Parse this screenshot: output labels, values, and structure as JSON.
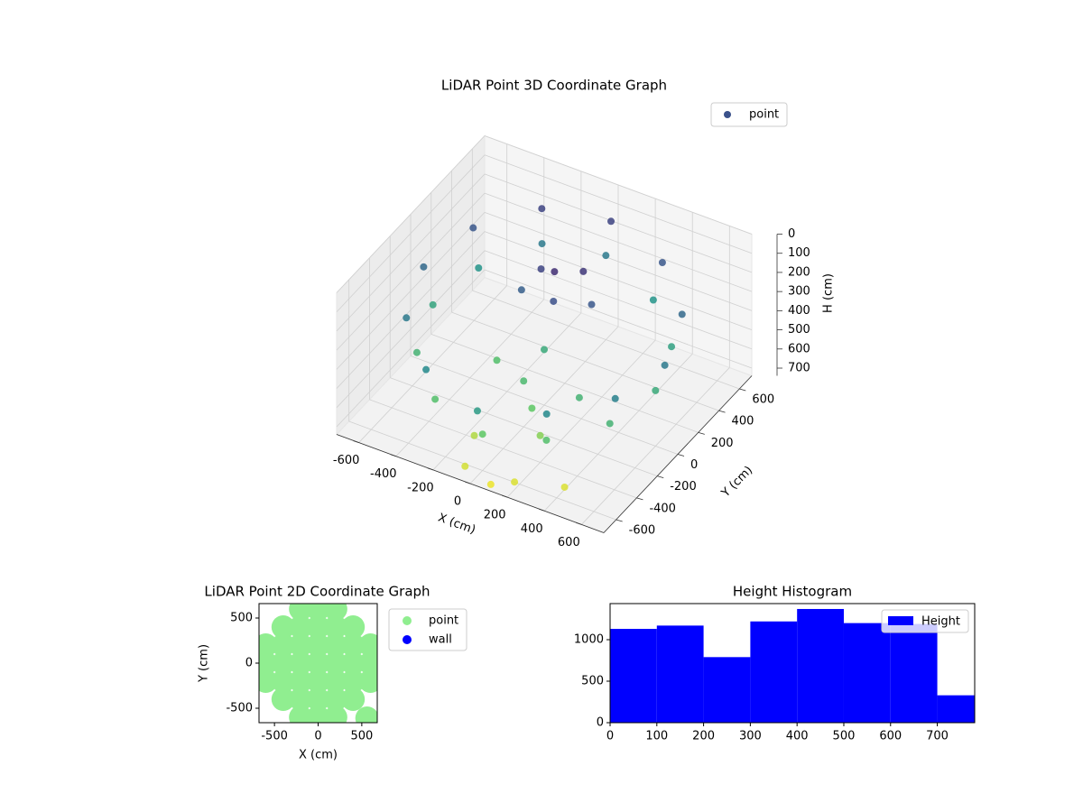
{
  "chart_data": [
    {
      "type": "scatter3d",
      "title": "LiDAR Point 3D Coordinate Graph",
      "xlabel": "X (cm)",
      "ylabel": "Y (cm)",
      "zlabel": "H (cm)",
      "xlim": [
        -720,
        720
      ],
      "ylim": [
        -720,
        720
      ],
      "zlim": [
        0,
        740
      ],
      "z_inverted": true,
      "xticks": [
        -600,
        -400,
        -200,
        0,
        200,
        400,
        600
      ],
      "yticks": [
        -600,
        -400,
        -200,
        0,
        200,
        400,
        600
      ],
      "zticks": [
        0,
        100,
        200,
        300,
        400,
        500,
        600,
        700
      ],
      "colormap": "viridis",
      "legend": "upper right",
      "series": [
        {
          "name": "point",
          "color": "#3b528b",
          "x": [
            650,
            563,
            325,
            0,
            -325,
            -563,
            -650,
            -563,
            -325,
            0,
            325,
            563,
            600,
            520,
            300,
            0,
            -300,
            -520,
            -600,
            -520,
            -300,
            0,
            300,
            520,
            0,
            100,
            -100,
            50,
            200,
            -150,
            0,
            100,
            -200,
            200,
            -100,
            300,
            0,
            100,
            200,
            -50,
            420
          ],
          "y": [
            0,
            325,
            563,
            650,
            563,
            325,
            0,
            -325,
            -563,
            -650,
            -563,
            -325,
            0,
            300,
            520,
            600,
            520,
            300,
            0,
            -300,
            -520,
            -600,
            -520,
            -300,
            100,
            200,
            150,
            0,
            100,
            50,
            -200,
            -300,
            -100,
            -400,
            -500,
            -200,
            0,
            -700,
            -650,
            -680,
            -560
          ],
          "z": [
            300,
            250,
            200,
            150,
            150,
            200,
            250,
            300,
            350,
            400,
            350,
            320,
            450,
            420,
            380,
            300,
            300,
            380,
            430,
            480,
            520,
            550,
            520,
            480,
            100,
            120,
            150,
            180,
            200,
            220,
            500,
            550,
            520,
            600,
            650,
            480,
            450,
            720,
            700,
            690,
            700
          ]
        }
      ]
    },
    {
      "type": "scatter",
      "title": "LiDAR Point 2D Coordinate Graph",
      "xlabel": "X (cm)",
      "ylabel": "Y (cm)",
      "xlim": [
        -677,
        677
      ],
      "ylim": [
        -660,
        660
      ],
      "xticks": [
        -500,
        0,
        500
      ],
      "yticks": [
        -500,
        0,
        500
      ],
      "legend": "outside right",
      "series": [
        {
          "name": "point",
          "color": "#90ee90",
          "x": [
            -600,
            -600,
            -600,
            -400,
            -400,
            -400,
            -400,
            -400,
            -200,
            -200,
            -200,
            -200,
            -200,
            -200,
            -200,
            0,
            0,
            0,
            0,
            0,
            0,
            0,
            200,
            200,
            200,
            200,
            200,
            200,
            200,
            400,
            400,
            400,
            400,
            400,
            600,
            600,
            600,
            560
          ],
          "y": [
            -200,
            0,
            200,
            -400,
            -200,
            0,
            200,
            400,
            -600,
            -400,
            -200,
            0,
            200,
            400,
            600,
            -600,
            -400,
            -200,
            0,
            200,
            400,
            600,
            -600,
            -400,
            -200,
            0,
            200,
            400,
            600,
            -400,
            -200,
            0,
            200,
            400,
            -200,
            0,
            200,
            -610
          ]
        },
        {
          "name": "wall",
          "color": "#0000ff",
          "x": [],
          "y": []
        }
      ]
    },
    {
      "type": "histogram",
      "title": "Height Histogram",
      "legend": "upper right",
      "bins": [
        0,
        100,
        200,
        300,
        400,
        500,
        600,
        700,
        780
      ],
      "counts": [
        1130,
        1170,
        790,
        1220,
        1370,
        1200,
        1190,
        330
      ],
      "series_name": "Height",
      "color": "#0000ff",
      "xlim": [
        0,
        780
      ],
      "ylim": [
        0,
        1435
      ],
      "xticks": [
        0,
        100,
        200,
        300,
        400,
        500,
        600,
        700
      ],
      "yticks": [
        0,
        500,
        1000
      ]
    }
  ]
}
